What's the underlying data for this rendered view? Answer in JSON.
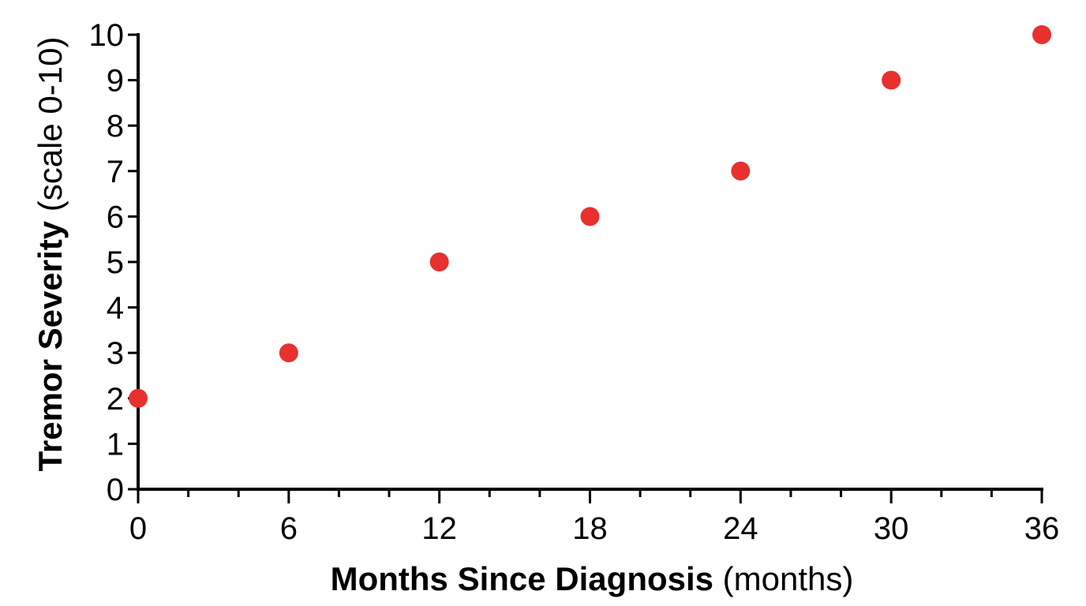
{
  "chart_data": {
    "type": "scatter",
    "title": "",
    "xlabel": {
      "bold": "Months Since Diagnosis",
      "rest": " (months)"
    },
    "ylabel": {
      "bold": "Tremor Severity",
      "rest": " (scale 0-10)"
    },
    "xlim": [
      0,
      36
    ],
    "ylim": [
      0,
      10
    ],
    "x_ticks": [
      0,
      6,
      12,
      18,
      24,
      30,
      36
    ],
    "x_minor_step": 2,
    "y_ticks": [
      0,
      1,
      2,
      3,
      4,
      5,
      6,
      7,
      8,
      9,
      10
    ],
    "grid": false,
    "legend": "none",
    "series": [
      {
        "color": "#e8302e",
        "points": [
          {
            "x": 0,
            "y": 2
          },
          {
            "x": 6,
            "y": 3
          },
          {
            "x": 12,
            "y": 5
          },
          {
            "x": 18,
            "y": 6
          },
          {
            "x": 24,
            "y": 7
          },
          {
            "x": 30,
            "y": 9
          },
          {
            "x": 36,
            "y": 10
          }
        ]
      }
    ]
  }
}
